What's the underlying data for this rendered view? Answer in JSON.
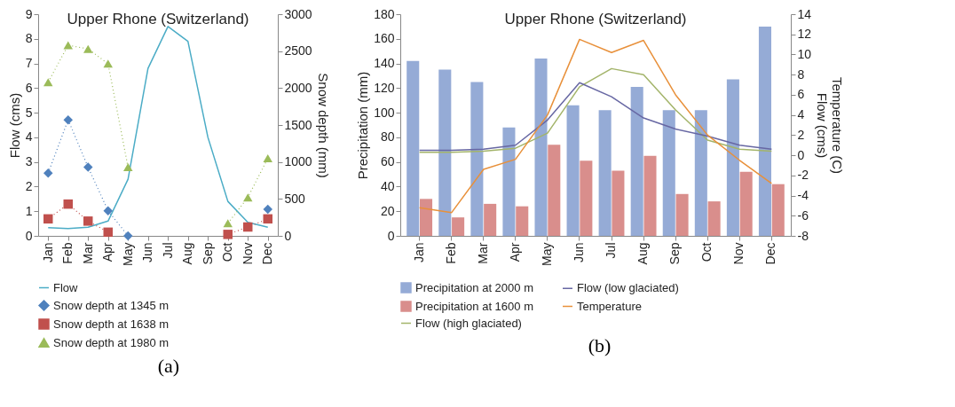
{
  "chart_data": [
    {
      "type": "line",
      "title": "Upper Rhone (Switzerland)",
      "ylabel": "Flow (cms)",
      "y2label": "Snow depth (mm)",
      "categories": [
        "Jan",
        "Feb",
        "Mar",
        "Apr",
        "May",
        "Jun",
        "Jul",
        "Aug",
        "Sep",
        "Oct",
        "Nov",
        "Dec"
      ],
      "ylim": [
        0,
        9
      ],
      "yticks": [
        0,
        1,
        2,
        3,
        4,
        5,
        6,
        7,
        8,
        9
      ],
      "y2lim": [
        0,
        3000
      ],
      "y2ticks": [
        0,
        500,
        1000,
        1500,
        2000,
        2500,
        3000
      ],
      "grid": false,
      "legend": "bottom",
      "annotations": [
        "(a)"
      ],
      "series": [
        {
          "name": "Flow",
          "axis": "y",
          "color": "#4bacc6",
          "marker": "none",
          "line_style": "solid",
          "values": [
            0.33,
            0.3,
            0.35,
            0.6,
            2.3,
            6.8,
            8.5,
            7.9,
            4.0,
            1.4,
            0.55,
            0.35
          ]
        },
        {
          "name": "Snow depth at 1345 m",
          "axis": "y2",
          "color": "#4f81bd",
          "marker": "diamond",
          "line_style": "dotted",
          "values": [
            850,
            1570,
            930,
            340,
            0,
            null,
            null,
            null,
            null,
            null,
            null,
            360
          ]
        },
        {
          "name": "Snow depth at 1638 m",
          "axis": "y2",
          "color": "#c0504d",
          "marker": "square",
          "line_style": "dotted",
          "values": [
            230,
            430,
            200,
            50,
            null,
            null,
            null,
            null,
            null,
            20,
            120,
            230
          ]
        },
        {
          "name": "Snow depth at 1980 m",
          "axis": "y2",
          "color": "#9bbb59",
          "marker": "triangle",
          "line_style": "dotted",
          "values": [
            2080,
            2580,
            2530,
            2330,
            930,
            null,
            null,
            null,
            null,
            170,
            520,
            1050
          ]
        }
      ]
    },
    {
      "type": "bar",
      "title": "Upper Rhone (Switzerland)",
      "ylabel": "Precipitation (mm)",
      "y2label": "Temperature (C)\nFlow (cms)",
      "categories": [
        "Jan",
        "Feb",
        "Mar",
        "Apr",
        "May",
        "Jun",
        "Jul",
        "Aug",
        "Sep",
        "Oct",
        "Nov",
        "Dec"
      ],
      "ylim": [
        0,
        180
      ],
      "yticks": [
        0,
        20,
        40,
        60,
        80,
        100,
        120,
        140,
        160,
        180
      ],
      "y2lim": [
        -8,
        14
      ],
      "y2ticks": [
        -8,
        -6,
        -4,
        -2,
        0,
        2,
        4,
        6,
        8,
        10,
        12,
        14
      ],
      "grid": false,
      "legend": "bottom",
      "annotations": [
        "(b)"
      ],
      "series": [
        {
          "name": "Precipitation at 2000 m",
          "axis": "y",
          "color": "#95abd6",
          "values": [
            142,
            135,
            125,
            88,
            144,
            106,
            102,
            121,
            102,
            102,
            127,
            170
          ]
        },
        {
          "name": "Precipitation at 1600 m",
          "axis": "y",
          "color": "#d98e8c",
          "values": [
            30,
            15,
            26,
            24,
            74,
            61,
            53,
            65,
            34,
            28,
            52,
            42
          ]
        },
        {
          "name": "Flow (high glaciated)",
          "type": "line",
          "axis": "y2",
          "color": "#a3b46a",
          "marker": "none",
          "line_style": "solid",
          "values": [
            0.3,
            0.3,
            0.4,
            0.7,
            2.2,
            6.8,
            8.6,
            8.0,
            4.5,
            1.5,
            0.6,
            0.4
          ]
        },
        {
          "name": "Flow (low glaciated)",
          "type": "line",
          "axis": "y2",
          "color": "#6767a3",
          "marker": "none",
          "line_style": "solid",
          "values": [
            0.5,
            0.5,
            0.6,
            1.0,
            3.5,
            7.2,
            5.8,
            3.7,
            2.6,
            1.9,
            1.0,
            0.6
          ]
        },
        {
          "name": "Temperature",
          "type": "line",
          "axis": "y2",
          "color": "#e8903a",
          "marker": "none",
          "line_style": "solid",
          "values": [
            -5.2,
            -5.7,
            -1.4,
            -0.4,
            4.0,
            11.5,
            10.2,
            11.4,
            6.0,
            2.0,
            -0.5,
            -2.8
          ]
        }
      ]
    }
  ]
}
